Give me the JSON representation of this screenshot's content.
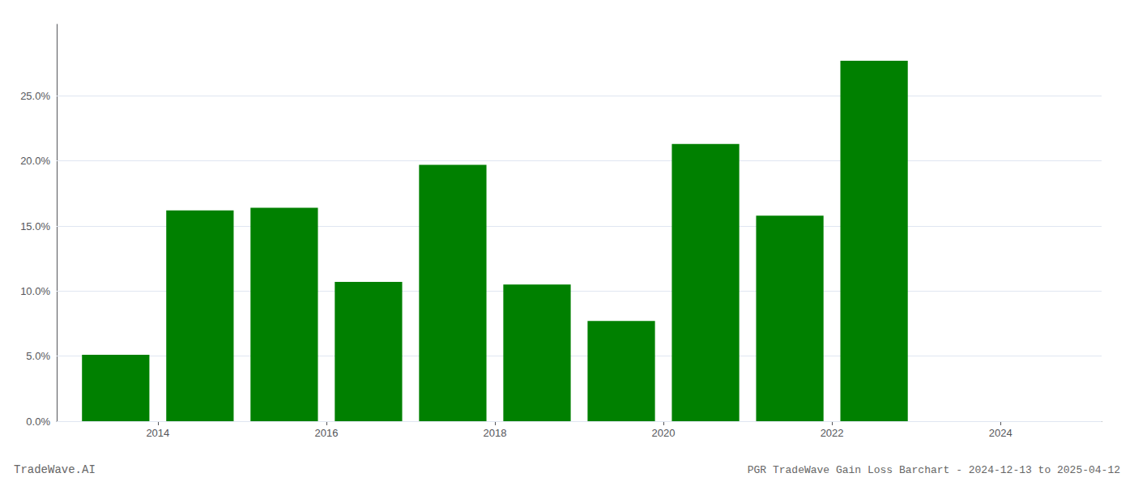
{
  "chart_data": {
    "type": "bar",
    "title": "PGR TradeWave Gain Loss Barchart - 2024-12-13 to 2025-04-12",
    "annotations": [
      "TradeWave.AI"
    ],
    "x": [
      2013.5,
      2014.5,
      2015.5,
      2016.5,
      2017.5,
      2018.5,
      2019.5,
      2020.5,
      2021.5,
      2022.5
    ],
    "values": [
      0.051,
      0.162,
      0.164,
      0.107,
      0.197,
      0.105,
      0.077,
      0.213,
      0.158,
      0.277
    ],
    "color": "#008000",
    "xlim": [
      2012.8,
      2025.2
    ],
    "xticks": [
      2014,
      2016,
      2018,
      2020,
      2022,
      2024
    ],
    "ylim": [
      0.0,
      0.305
    ],
    "yticks": [
      {
        "value": 0.0,
        "label": "0.0%"
      },
      {
        "value": 0.05,
        "label": "5.0%"
      },
      {
        "value": 0.1,
        "label": "10.0%"
      },
      {
        "value": 0.15,
        "label": "15.0%"
      },
      {
        "value": 0.2,
        "label": "20.0%"
      },
      {
        "value": 0.25,
        "label": "25.0%"
      }
    ],
    "grid": true
  }
}
